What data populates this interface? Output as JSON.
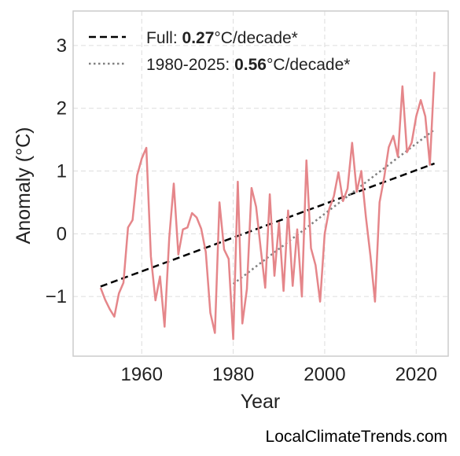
{
  "chart_data": {
    "type": "line",
    "xlabel": "Year",
    "ylabel": "Anomaly (°C)",
    "xlim": [
      1945,
      2027
    ],
    "ylim": [
      -1.95,
      3.55
    ],
    "x_ticks": [
      1960,
      1980,
      2000,
      2020
    ],
    "y_ticks": [
      3,
      2,
      1,
      0,
      -1
    ],
    "y_tick_labels": [
      "3",
      "2",
      "1",
      "0",
      "−1"
    ],
    "grid": true,
    "legend_position": "top-left",
    "colors": {
      "series": "#e5868a",
      "trend_full": "#000000",
      "trend_recent": "#808080",
      "grid": "#dddddd",
      "frame": "#cccccc"
    },
    "series": [
      {
        "x": [
          1951,
          1952,
          1953,
          1954,
          1955,
          1956,
          1957,
          1958,
          1959,
          1960,
          1961,
          1962,
          1963,
          1964,
          1965,
          1966,
          1967,
          1968,
          1969,
          1970,
          1971,
          1972,
          1973,
          1974,
          1975,
          1976,
          1977,
          1978,
          1979,
          1980,
          1981,
          1982,
          1983,
          1984,
          1985,
          1986,
          1987,
          1988,
          1989,
          1990,
          1991,
          1992,
          1993,
          1994,
          1995,
          1996,
          1997,
          1998,
          1999,
          2000,
          2001,
          2002,
          2003,
          2004,
          2005,
          2006,
          2007,
          2008,
          2009,
          2010,
          2011,
          2012,
          2013,
          2014,
          2015,
          2016,
          2017,
          2018,
          2019,
          2020,
          2021,
          2022,
          2023,
          2024
        ],
        "values": [
          -0.86,
          -1.05,
          -1.2,
          -1.32,
          -0.95,
          -0.78,
          0.1,
          0.22,
          0.93,
          1.2,
          1.37,
          -0.36,
          -1.06,
          -0.68,
          -1.48,
          -0.07,
          0.8,
          -0.33,
          0.07,
          0.1,
          0.33,
          0.26,
          0.08,
          -0.29,
          -1.26,
          -1.58,
          0.5,
          -0.25,
          -0.4,
          -1.68,
          0.83,
          -1.43,
          -0.88,
          0.73,
          0.43,
          -0.23,
          -0.86,
          0.63,
          -0.67,
          0.18,
          -0.91,
          0.37,
          -0.83,
          0.07,
          -1.0,
          1.17,
          -0.23,
          -0.5,
          -1.08,
          0.0,
          0.4,
          0.6,
          0.98,
          0.52,
          0.72,
          1.45,
          0.67,
          1.0,
          0.27,
          -0.35,
          -1.08,
          0.5,
          0.9,
          1.38,
          1.56,
          1.23,
          2.35,
          1.3,
          1.45,
          1.87,
          2.13,
          1.87,
          1.1,
          2.58
        ]
      }
    ],
    "trend_lines": [
      {
        "name": "Full",
        "period": [
          1951,
          2024
        ],
        "endpoints": [
          -0.84,
          1.12
        ],
        "rate": "0.27",
        "unit": "°C/decade*",
        "style": "dashed"
      },
      {
        "name": "1980-2025",
        "period": [
          1980,
          2024
        ],
        "endpoints": [
          -0.8,
          1.66
        ],
        "rate": "0.56",
        "unit": "°C/decade*",
        "style": "dotted"
      }
    ]
  },
  "legend": [
    {
      "label": "Full: ",
      "value": "0.27",
      "unit": "°C/decade*"
    },
    {
      "label": "1980-2025: ",
      "value": "0.56",
      "unit": "°C/decade*"
    }
  ],
  "watermark": "LocalClimateTrends.com"
}
